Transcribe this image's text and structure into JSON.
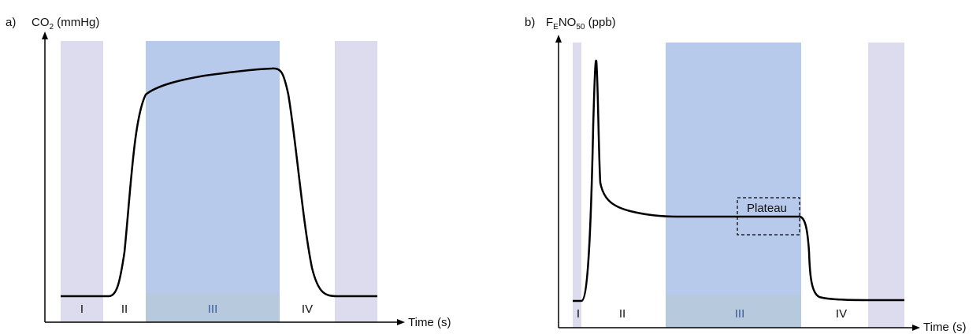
{
  "panel_a": {
    "letter": "a)",
    "ylabel_main": "CO",
    "ylabel_sub": "2",
    "ylabel_unit": " (mmHg)",
    "xlabel": "Time (s)",
    "phases": [
      "I",
      "II",
      "III",
      "IV"
    ]
  },
  "panel_b": {
    "letter": "b)",
    "ylabel_f": "F",
    "ylabel_e": "E",
    "ylabel_no": "NO",
    "ylabel_50": "50",
    "ylabel_unit": " (ppb)",
    "xlabel": "Time (s)",
    "phases": [
      "I",
      "II",
      "III",
      "IV"
    ],
    "annotation": "Plateau"
  },
  "colors": {
    "lavender": "#dcdcee",
    "blue": "#b8caeb",
    "blue_lower": "#b7c9dd",
    "curve": "#000000"
  }
}
